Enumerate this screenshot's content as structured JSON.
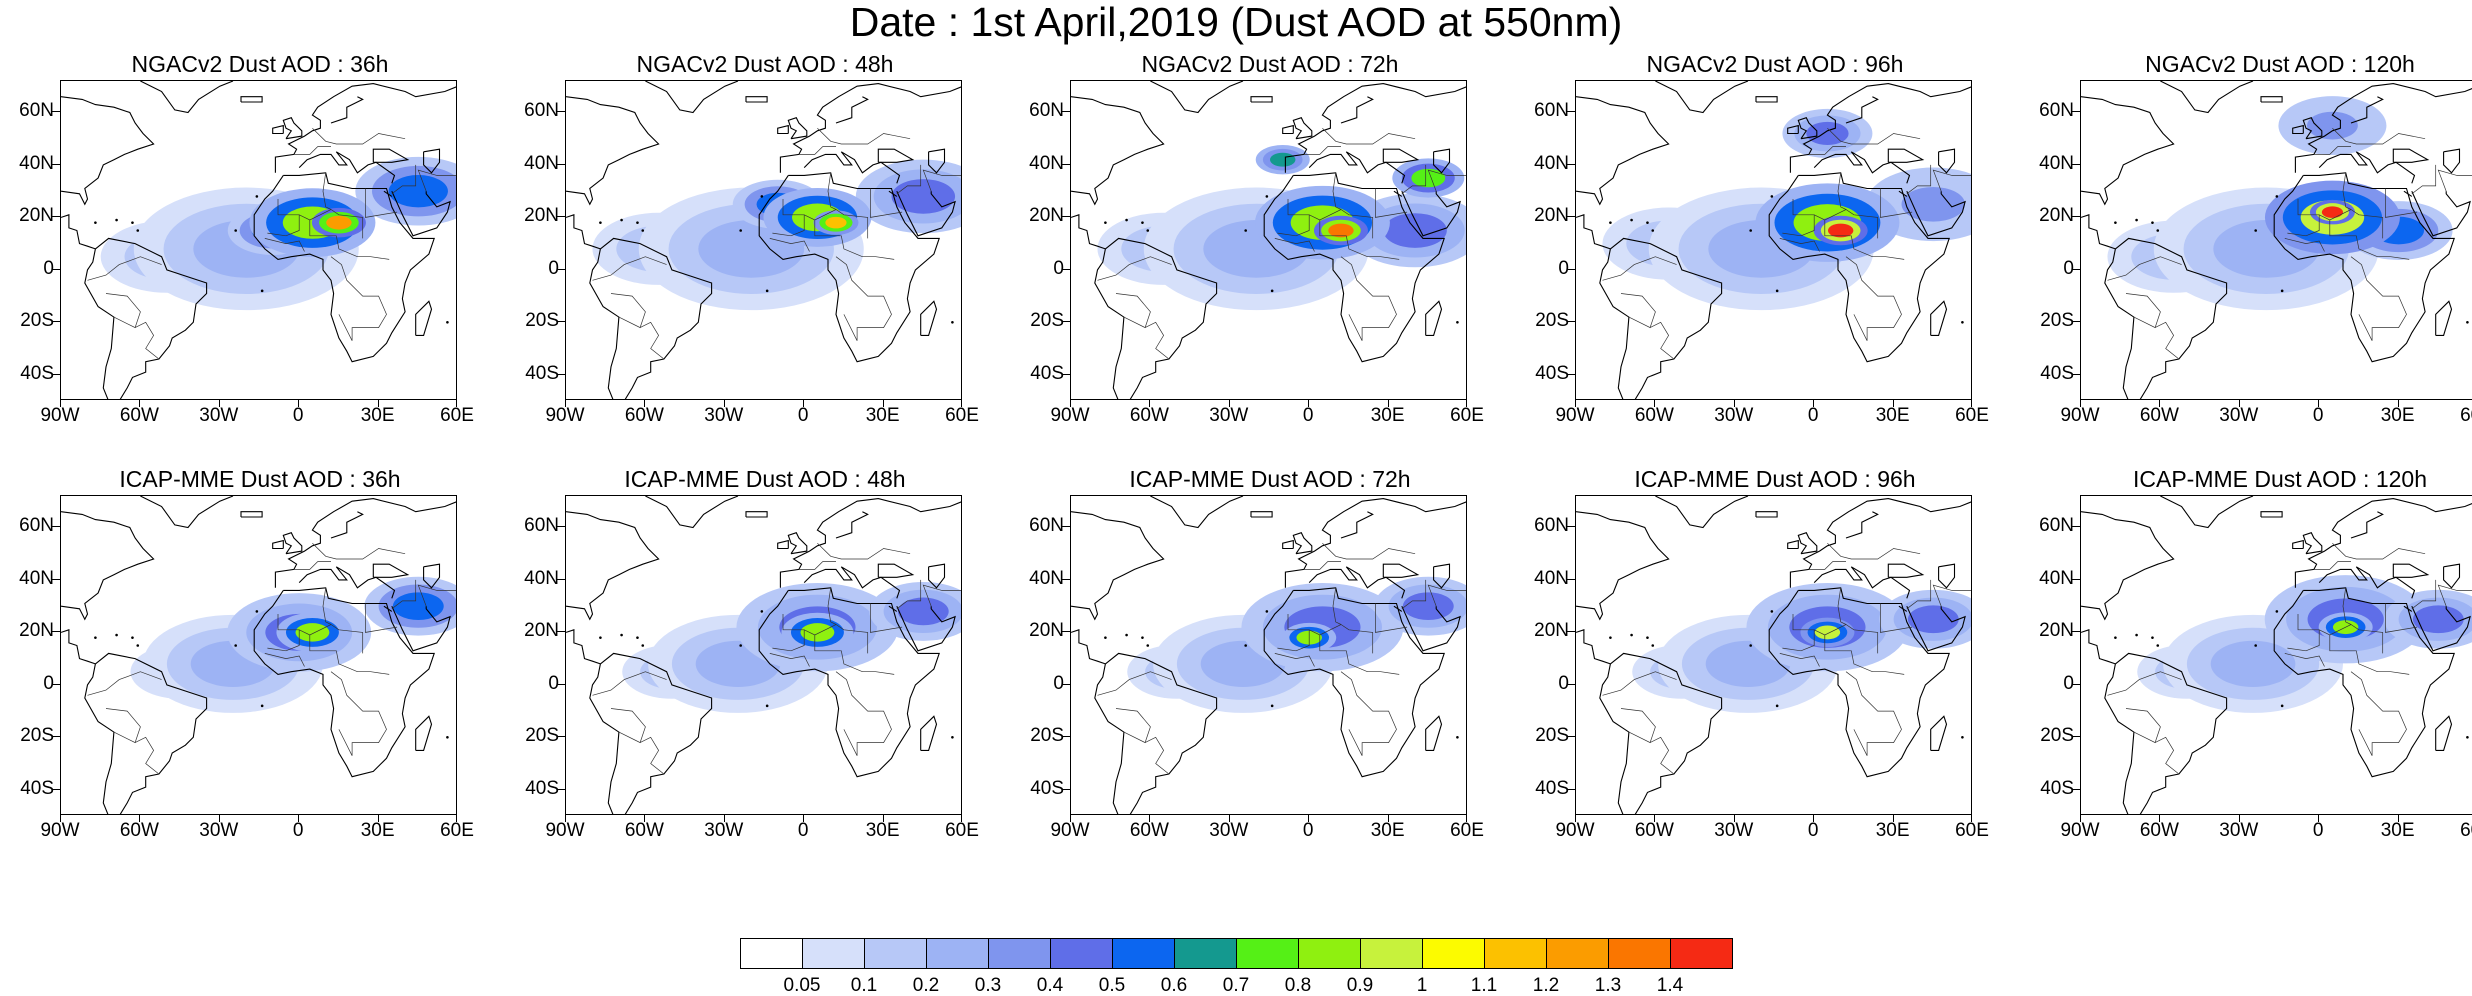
{
  "title": "Date : 1st April,2019 (Dust AOD at 550nm)",
  "lat_labels": [
    "60N",
    "40N",
    "20N",
    "0",
    "20S",
    "40S"
  ],
  "lon_labels": [
    "90W",
    "60W",
    "30W",
    "0",
    "30E",
    "60E"
  ],
  "map_domain": {
    "lon_min": -90,
    "lon_max": 60,
    "lat_min": -50,
    "lat_max": 72
  },
  "panels": [
    {
      "id": "ngac-36",
      "title": "NGACv2 Dust AOD : 36h",
      "plume": [
        {
          "lon": 15,
          "lat": 18,
          "aod": 1.2,
          "r": 6
        },
        {
          "lon": 5,
          "lat": 18,
          "aod": 0.8,
          "r": 14
        },
        {
          "lon": -10,
          "lat": 15,
          "aod": 0.5,
          "r": 10
        },
        {
          "lon": 45,
          "lat": 30,
          "aod": 0.5,
          "r": 14
        },
        {
          "lon": -20,
          "lat": 8,
          "aod": 0.2,
          "r": 25
        },
        {
          "lon": -50,
          "lat": 5,
          "aod": 0.1,
          "r": 20
        }
      ]
    },
    {
      "id": "ngac-48",
      "title": "NGACv2 Dust AOD : 48h",
      "plume": [
        {
          "lon": 12,
          "lat": 18,
          "aod": 1.1,
          "r": 5
        },
        {
          "lon": 5,
          "lat": 20,
          "aod": 0.8,
          "r": 12
        },
        {
          "lon": -10,
          "lat": 25,
          "aod": 0.5,
          "r": 10
        },
        {
          "lon": 45,
          "lat": 28,
          "aod": 0.4,
          "r": 15
        },
        {
          "lon": -20,
          "lat": 8,
          "aod": 0.2,
          "r": 25
        },
        {
          "lon": -55,
          "lat": 8,
          "aod": 0.1,
          "r": 20
        }
      ]
    },
    {
      "id": "ngac-72",
      "title": "NGACv2 Dust AOD : 72h",
      "plume": [
        {
          "lon": 12,
          "lat": 15,
          "aod": 1.3,
          "r": 6
        },
        {
          "lon": 5,
          "lat": 18,
          "aod": 0.8,
          "r": 15
        },
        {
          "lon": -10,
          "lat": 42,
          "aod": 0.6,
          "r": 6
        },
        {
          "lon": 45,
          "lat": 35,
          "aod": 0.7,
          "r": 8
        },
        {
          "lon": 40,
          "lat": 15,
          "aod": 0.4,
          "r": 15
        },
        {
          "lon": -20,
          "lat": 8,
          "aod": 0.2,
          "r": 25
        },
        {
          "lon": -55,
          "lat": 8,
          "aod": 0.1,
          "r": 20
        }
      ]
    },
    {
      "id": "ngac-96",
      "title": "NGACv2 Dust AOD : 96h",
      "plume": [
        {
          "lon": 10,
          "lat": 15,
          "aod": 1.4,
          "r": 6
        },
        {
          "lon": 5,
          "lat": 18,
          "aod": 0.8,
          "r": 16
        },
        {
          "lon": 5,
          "lat": 52,
          "aod": 0.4,
          "r": 10
        },
        {
          "lon": 45,
          "lat": 25,
          "aod": 0.3,
          "r": 15
        },
        {
          "lon": -20,
          "lat": 8,
          "aod": 0.2,
          "r": 25
        },
        {
          "lon": -55,
          "lat": 10,
          "aod": 0.1,
          "r": 20
        }
      ]
    },
    {
      "id": "ngac-120",
      "title": "NGACv2 Dust AOD : 120h",
      "plume": [
        {
          "lon": 5,
          "lat": 22,
          "aod": 1.4,
          "r": 5
        },
        {
          "lon": 5,
          "lat": 20,
          "aod": 0.9,
          "r": 15
        },
        {
          "lon": 5,
          "lat": 55,
          "aod": 0.3,
          "r": 12
        },
        {
          "lon": 30,
          "lat": 15,
          "aod": 0.5,
          "r": 12
        },
        {
          "lon": -20,
          "lat": 8,
          "aod": 0.2,
          "r": 25
        },
        {
          "lon": -55,
          "lat": 5,
          "aod": 0.1,
          "r": 20
        }
      ]
    },
    {
      "id": "icap-36",
      "title": "ICAP-MME Dust AOD : 36h",
      "plume": [
        {
          "lon": 5,
          "lat": 20,
          "aod": 0.8,
          "r": 8
        },
        {
          "lon": 0,
          "lat": 20,
          "aod": 0.4,
          "r": 16
        },
        {
          "lon": 45,
          "lat": 30,
          "aod": 0.5,
          "r": 12
        },
        {
          "lon": -25,
          "lat": 8,
          "aod": 0.2,
          "r": 20
        },
        {
          "lon": -45,
          "lat": 5,
          "aod": 0.1,
          "r": 15
        }
      ]
    },
    {
      "id": "icap-48",
      "title": "ICAP-MME Dust AOD : 48h",
      "plume": [
        {
          "lon": 5,
          "lat": 20,
          "aod": 0.8,
          "r": 8
        },
        {
          "lon": 5,
          "lat": 22,
          "aod": 0.4,
          "r": 18
        },
        {
          "lon": 45,
          "lat": 28,
          "aod": 0.4,
          "r": 12
        },
        {
          "lon": -25,
          "lat": 8,
          "aod": 0.2,
          "r": 20
        },
        {
          "lon": -50,
          "lat": 5,
          "aod": 0.1,
          "r": 15
        }
      ]
    },
    {
      "id": "icap-72",
      "title": "ICAP-MME Dust AOD : 72h",
      "plume": [
        {
          "lon": 0,
          "lat": 18,
          "aod": 0.8,
          "r": 6
        },
        {
          "lon": 5,
          "lat": 22,
          "aod": 0.4,
          "r": 18
        },
        {
          "lon": 45,
          "lat": 30,
          "aod": 0.4,
          "r": 12
        },
        {
          "lon": -25,
          "lat": 8,
          "aod": 0.2,
          "r": 20
        },
        {
          "lon": -50,
          "lat": 5,
          "aod": 0.1,
          "r": 15
        }
      ]
    },
    {
      "id": "icap-96",
      "title": "ICAP-MME Dust AOD : 96h",
      "plume": [
        {
          "lon": 5,
          "lat": 20,
          "aod": 0.9,
          "r": 6
        },
        {
          "lon": 5,
          "lat": 22,
          "aod": 0.4,
          "r": 18
        },
        {
          "lon": 45,
          "lat": 25,
          "aod": 0.4,
          "r": 12
        },
        {
          "lon": -25,
          "lat": 8,
          "aod": 0.2,
          "r": 20
        },
        {
          "lon": -50,
          "lat": 5,
          "aod": 0.1,
          "r": 15
        }
      ]
    },
    {
      "id": "icap-120",
      "title": "ICAP-MME Dust AOD : 120h",
      "plume": [
        {
          "lon": 10,
          "lat": 22,
          "aod": 0.8,
          "r": 6
        },
        {
          "lon": 10,
          "lat": 25,
          "aod": 0.4,
          "r": 18
        },
        {
          "lon": 45,
          "lat": 25,
          "aod": 0.4,
          "r": 12
        },
        {
          "lon": -25,
          "lat": 8,
          "aod": 0.2,
          "r": 20
        },
        {
          "lon": -50,
          "lat": 5,
          "aod": 0.1,
          "r": 15
        }
      ]
    }
  ],
  "colorbar": {
    "labels": [
      "0.05",
      "0.1",
      "0.2",
      "0.3",
      "0.4",
      "0.5",
      "0.6",
      "0.7",
      "0.8",
      "0.9",
      "1",
      "1.1",
      "1.2",
      "1.3",
      "1.4"
    ],
    "colors": [
      "#ffffff",
      "#d6e0fa",
      "#b7c8f7",
      "#9db3f4",
      "#7f95ee",
      "#5f6ee8",
      "#0c66f0",
      "#14998f",
      "#55f016",
      "#8ff010",
      "#c7f23c",
      "#fcfb00",
      "#fcc100",
      "#fb9c00",
      "#fa7600",
      "#f52a14"
    ]
  }
}
